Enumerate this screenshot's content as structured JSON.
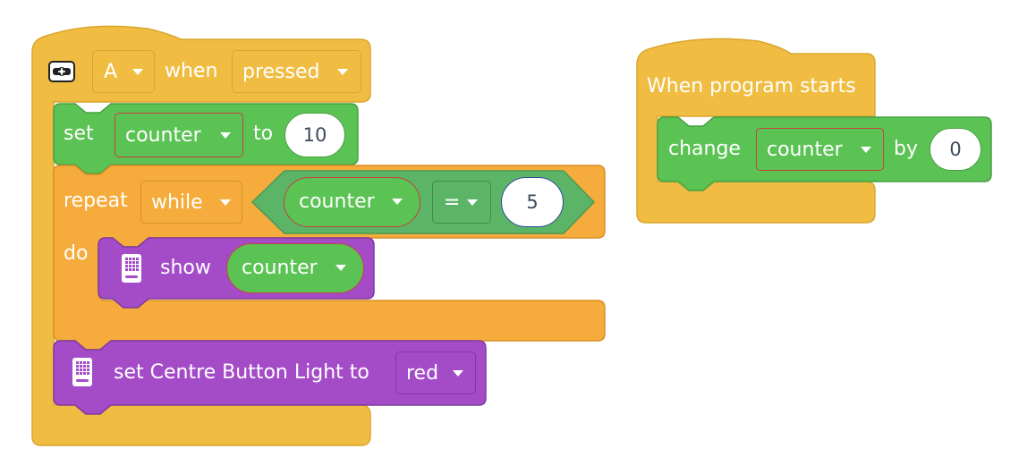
{
  "colors": {
    "events": "#F0BD42",
    "events_border": "#D9A52E",
    "variables": "#5BC254",
    "variables_border": "#48A043",
    "control": "#F5AC3C",
    "control_border": "#D98F24",
    "display": "#A44CC8",
    "display_border": "#7F3A9E",
    "operator": "#5CB466",
    "pill_border": "#C6423D"
  },
  "script_main": {
    "hat": {
      "icon": "button-icon",
      "button_value": "A",
      "word_when": "when",
      "event_value": "pressed"
    },
    "set_block": {
      "word_set": "set",
      "variable": "counter",
      "word_to": "to",
      "value": "10"
    },
    "repeat_block": {
      "word_repeat": "repeat",
      "mode": "while",
      "condition": {
        "left": "counter",
        "operator": "=",
        "right": "5"
      },
      "word_do": "do",
      "inner": {
        "icon": "hub-display-icon",
        "word_show": "show",
        "variable": "counter"
      }
    },
    "light_block": {
      "icon": "hub-display-icon",
      "label": "set Centre Button Light to",
      "color_value": "red"
    }
  },
  "script_start": {
    "hat_label": "When program starts",
    "change_block": {
      "word_change": "change",
      "variable": "counter",
      "word_by": "by",
      "value": "0"
    }
  }
}
